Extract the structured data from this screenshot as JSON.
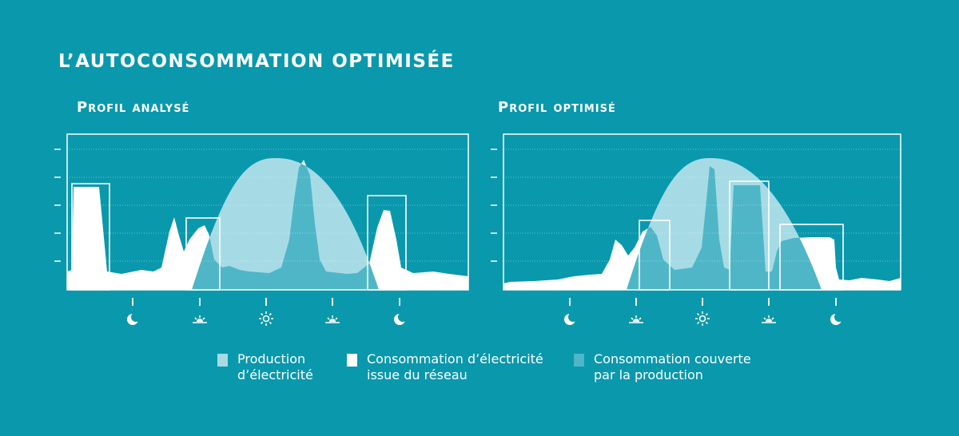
{
  "title": "L’autoconsommation optimisée",
  "panels": [
    {
      "title": "Profil analysé"
    },
    {
      "title": "Profil optimisé"
    }
  ],
  "legend": [
    {
      "label": "Production\nd’électricité",
      "color": "#a6dbe5"
    },
    {
      "label": "Consommation d’électricité\nissue du réseau",
      "color": "#ffffff"
    },
    {
      "label": "Consommation couverte\npar la production",
      "color": "#4fb6c7"
    }
  ],
  "chart_data": [
    {
      "type": "area",
      "title": "Profil analysé",
      "x_icons": [
        "moon-icon",
        "sunrise-icon",
        "sun-icon",
        "sunset-icon",
        "moon-icon"
      ],
      "series": [
        {
          "name": "Production d’électricité",
          "color": "#a6dbe5"
        },
        {
          "name": "Consommation d’électricité issue du réseau",
          "color": "#ffffff"
        },
        {
          "name": "Consommation couverte par la production",
          "color": "#4fb6c7"
        }
      ],
      "grid": true
    },
    {
      "type": "area",
      "title": "Profil optimisé",
      "x_icons": [
        "moon-icon",
        "sunrise-icon",
        "sun-icon",
        "sunset-icon",
        "moon-icon"
      ],
      "series": [
        {
          "name": "Production d’électricité",
          "color": "#a6dbe5"
        },
        {
          "name": "Consommation d’électricité issue du réseau",
          "color": "#ffffff"
        },
        {
          "name": "Consommation couverte par la production",
          "color": "#4fb6c7"
        }
      ],
      "grid": true
    }
  ]
}
